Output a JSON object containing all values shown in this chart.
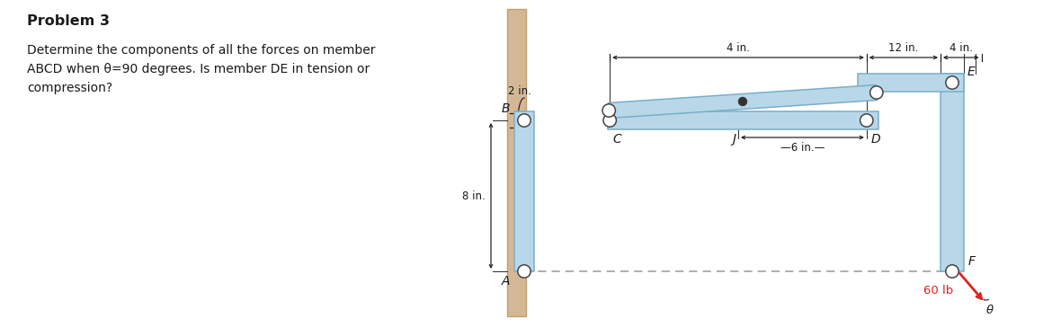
{
  "title": "Problem 3",
  "line1": "Determine the components of all the forces on member",
  "line2": "ABCD when θ=90 degrees. Is member DE in tension or",
  "line3": "compression?",
  "bg_color": "#ffffff",
  "wall_color": "#d4b896",
  "wall_edge_color": "#c0a070",
  "member_fill": "#b8d8ea",
  "member_edge": "#7aaec8",
  "dim_color": "#1a1a1a",
  "force_color": "#dd2222",
  "dashed_color": "#999999",
  "text_color": "#1a1a1a",
  "fig_width": 11.7,
  "fig_height": 3.74,
  "dpi": 100
}
